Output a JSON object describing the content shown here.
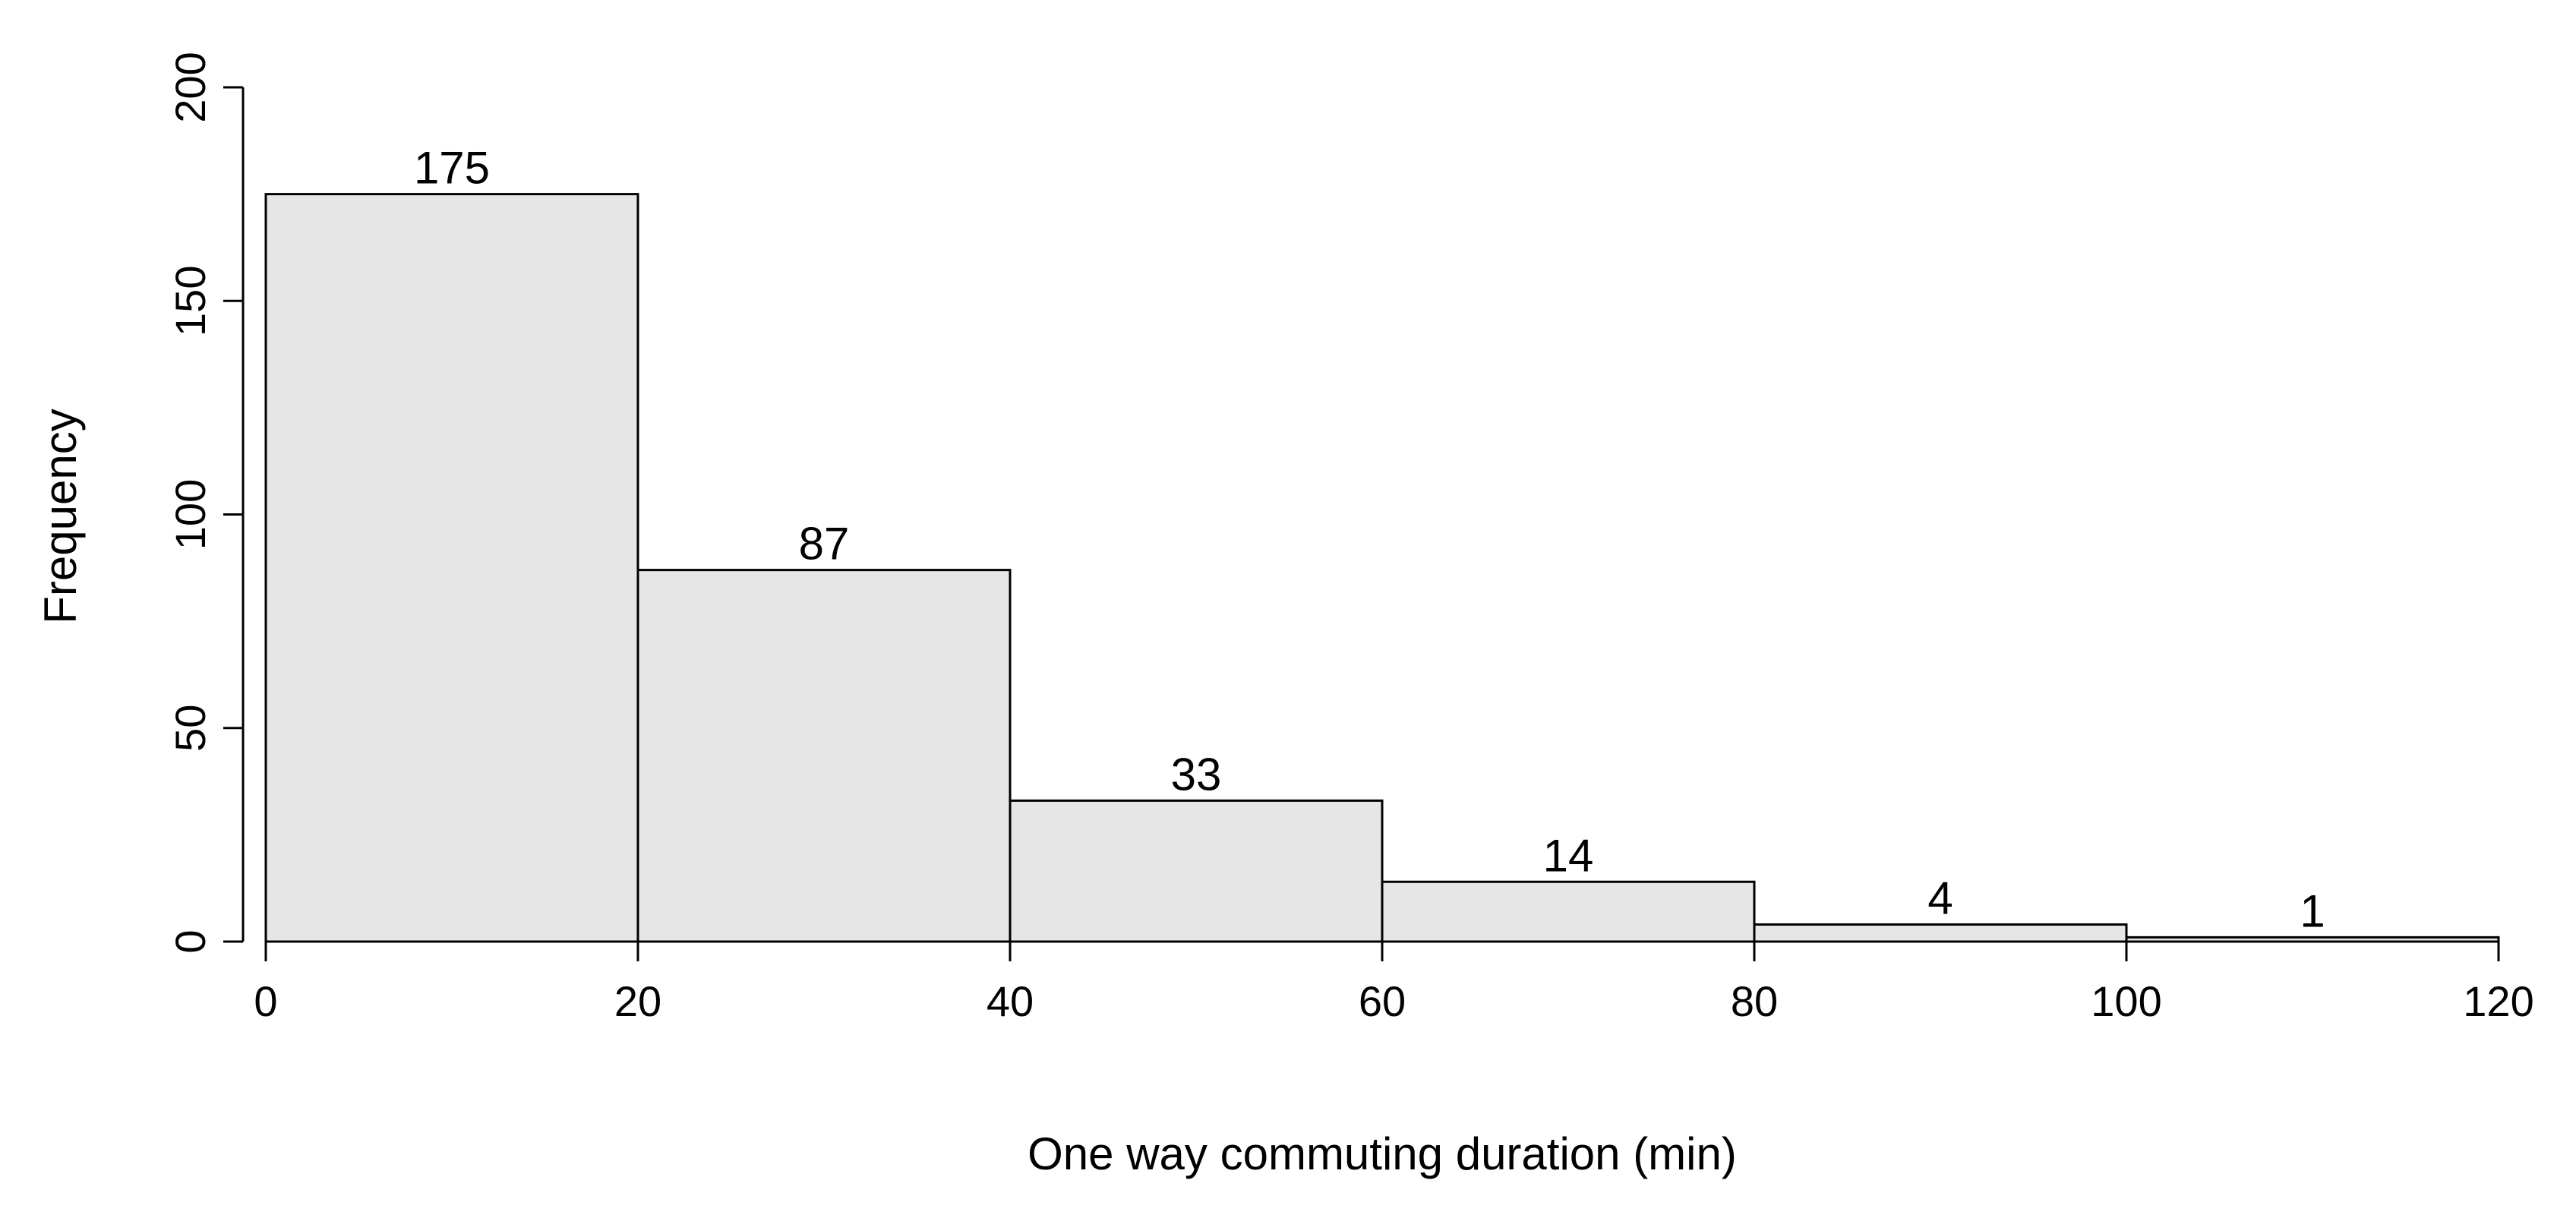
{
  "chart_data": {
    "type": "bar",
    "variant": "histogram",
    "bins": [
      {
        "start": 0,
        "end": 20,
        "count": 175
      },
      {
        "start": 20,
        "end": 40,
        "count": 87
      },
      {
        "start": 40,
        "end": 60,
        "count": 33
      },
      {
        "start": 60,
        "end": 80,
        "count": 14
      },
      {
        "start": 80,
        "end": 100,
        "count": 4
      },
      {
        "start": 100,
        "end": 120,
        "count": 1
      }
    ],
    "bar_labels": [
      "175",
      "87",
      "33",
      "14",
      "4",
      "1"
    ],
    "xlabel": "One way commuting duration (min)",
    "ylabel": "Frequency",
    "xlim": [
      0,
      120
    ],
    "ylim": [
      0,
      200
    ],
    "x_ticks": [
      0,
      20,
      40,
      60,
      80,
      100,
      120
    ],
    "y_ticks": [
      0,
      50,
      100,
      150,
      200
    ],
    "grid": false,
    "colors": {
      "bar_fill": "#e6e6e6",
      "bar_edge": "#000000"
    }
  }
}
